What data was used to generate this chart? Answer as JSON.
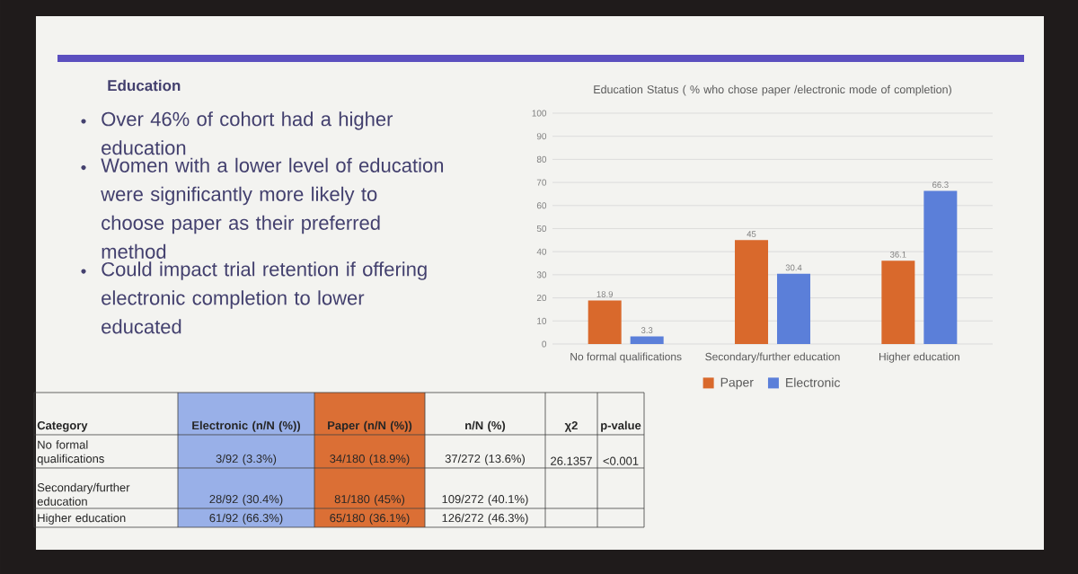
{
  "chart_data": {
    "type": "bar",
    "title": "Education Status ( % who chose paper /electronic mode of completion)",
    "categories": [
      "No formal qualifications",
      "Secondary/further education",
      "Higher education"
    ],
    "series": [
      {
        "name": "Paper",
        "color": "#d9692c",
        "values": [
          18.9,
          45,
          36.1
        ]
      },
      {
        "name": "Electronic",
        "color": "#5b7fd9",
        "values": [
          3.3,
          30.4,
          66.3
        ]
      }
    ],
    "ylim": [
      0,
      100
    ],
    "yticks": [
      0,
      10,
      20,
      30,
      40,
      50,
      60,
      70,
      80,
      90,
      100
    ],
    "grid": "y",
    "legend": "bottom",
    "data_labels": true,
    "annotations": [
      "Education",
      "Over 46% of cohort had a higher education",
      "Women with a lower level of education were significantly more likely to choose paper as their preferred method",
      "Could impact trial retention if offering electronic completion to lower educated",
      "Category",
      "Electronic (n/N (%))",
      "Paper (n/N (%))",
      "n/N (%)",
      "χ2",
      "p-value",
      "No formal qualifications",
      "3/92 (3.3%)",
      "34/180 (18.9%)",
      "37/272 (13.6%)",
      "26.1357",
      "<0.001",
      "Secondary/further education",
      "28/92 (30.4%)",
      "81/180 (45%)",
      "109/272 (40.1%)",
      "Higher education",
      "61/92 (66.3%)",
      "65/180 (36.1%)",
      "126/272 (46.3%)"
    ]
  }
}
